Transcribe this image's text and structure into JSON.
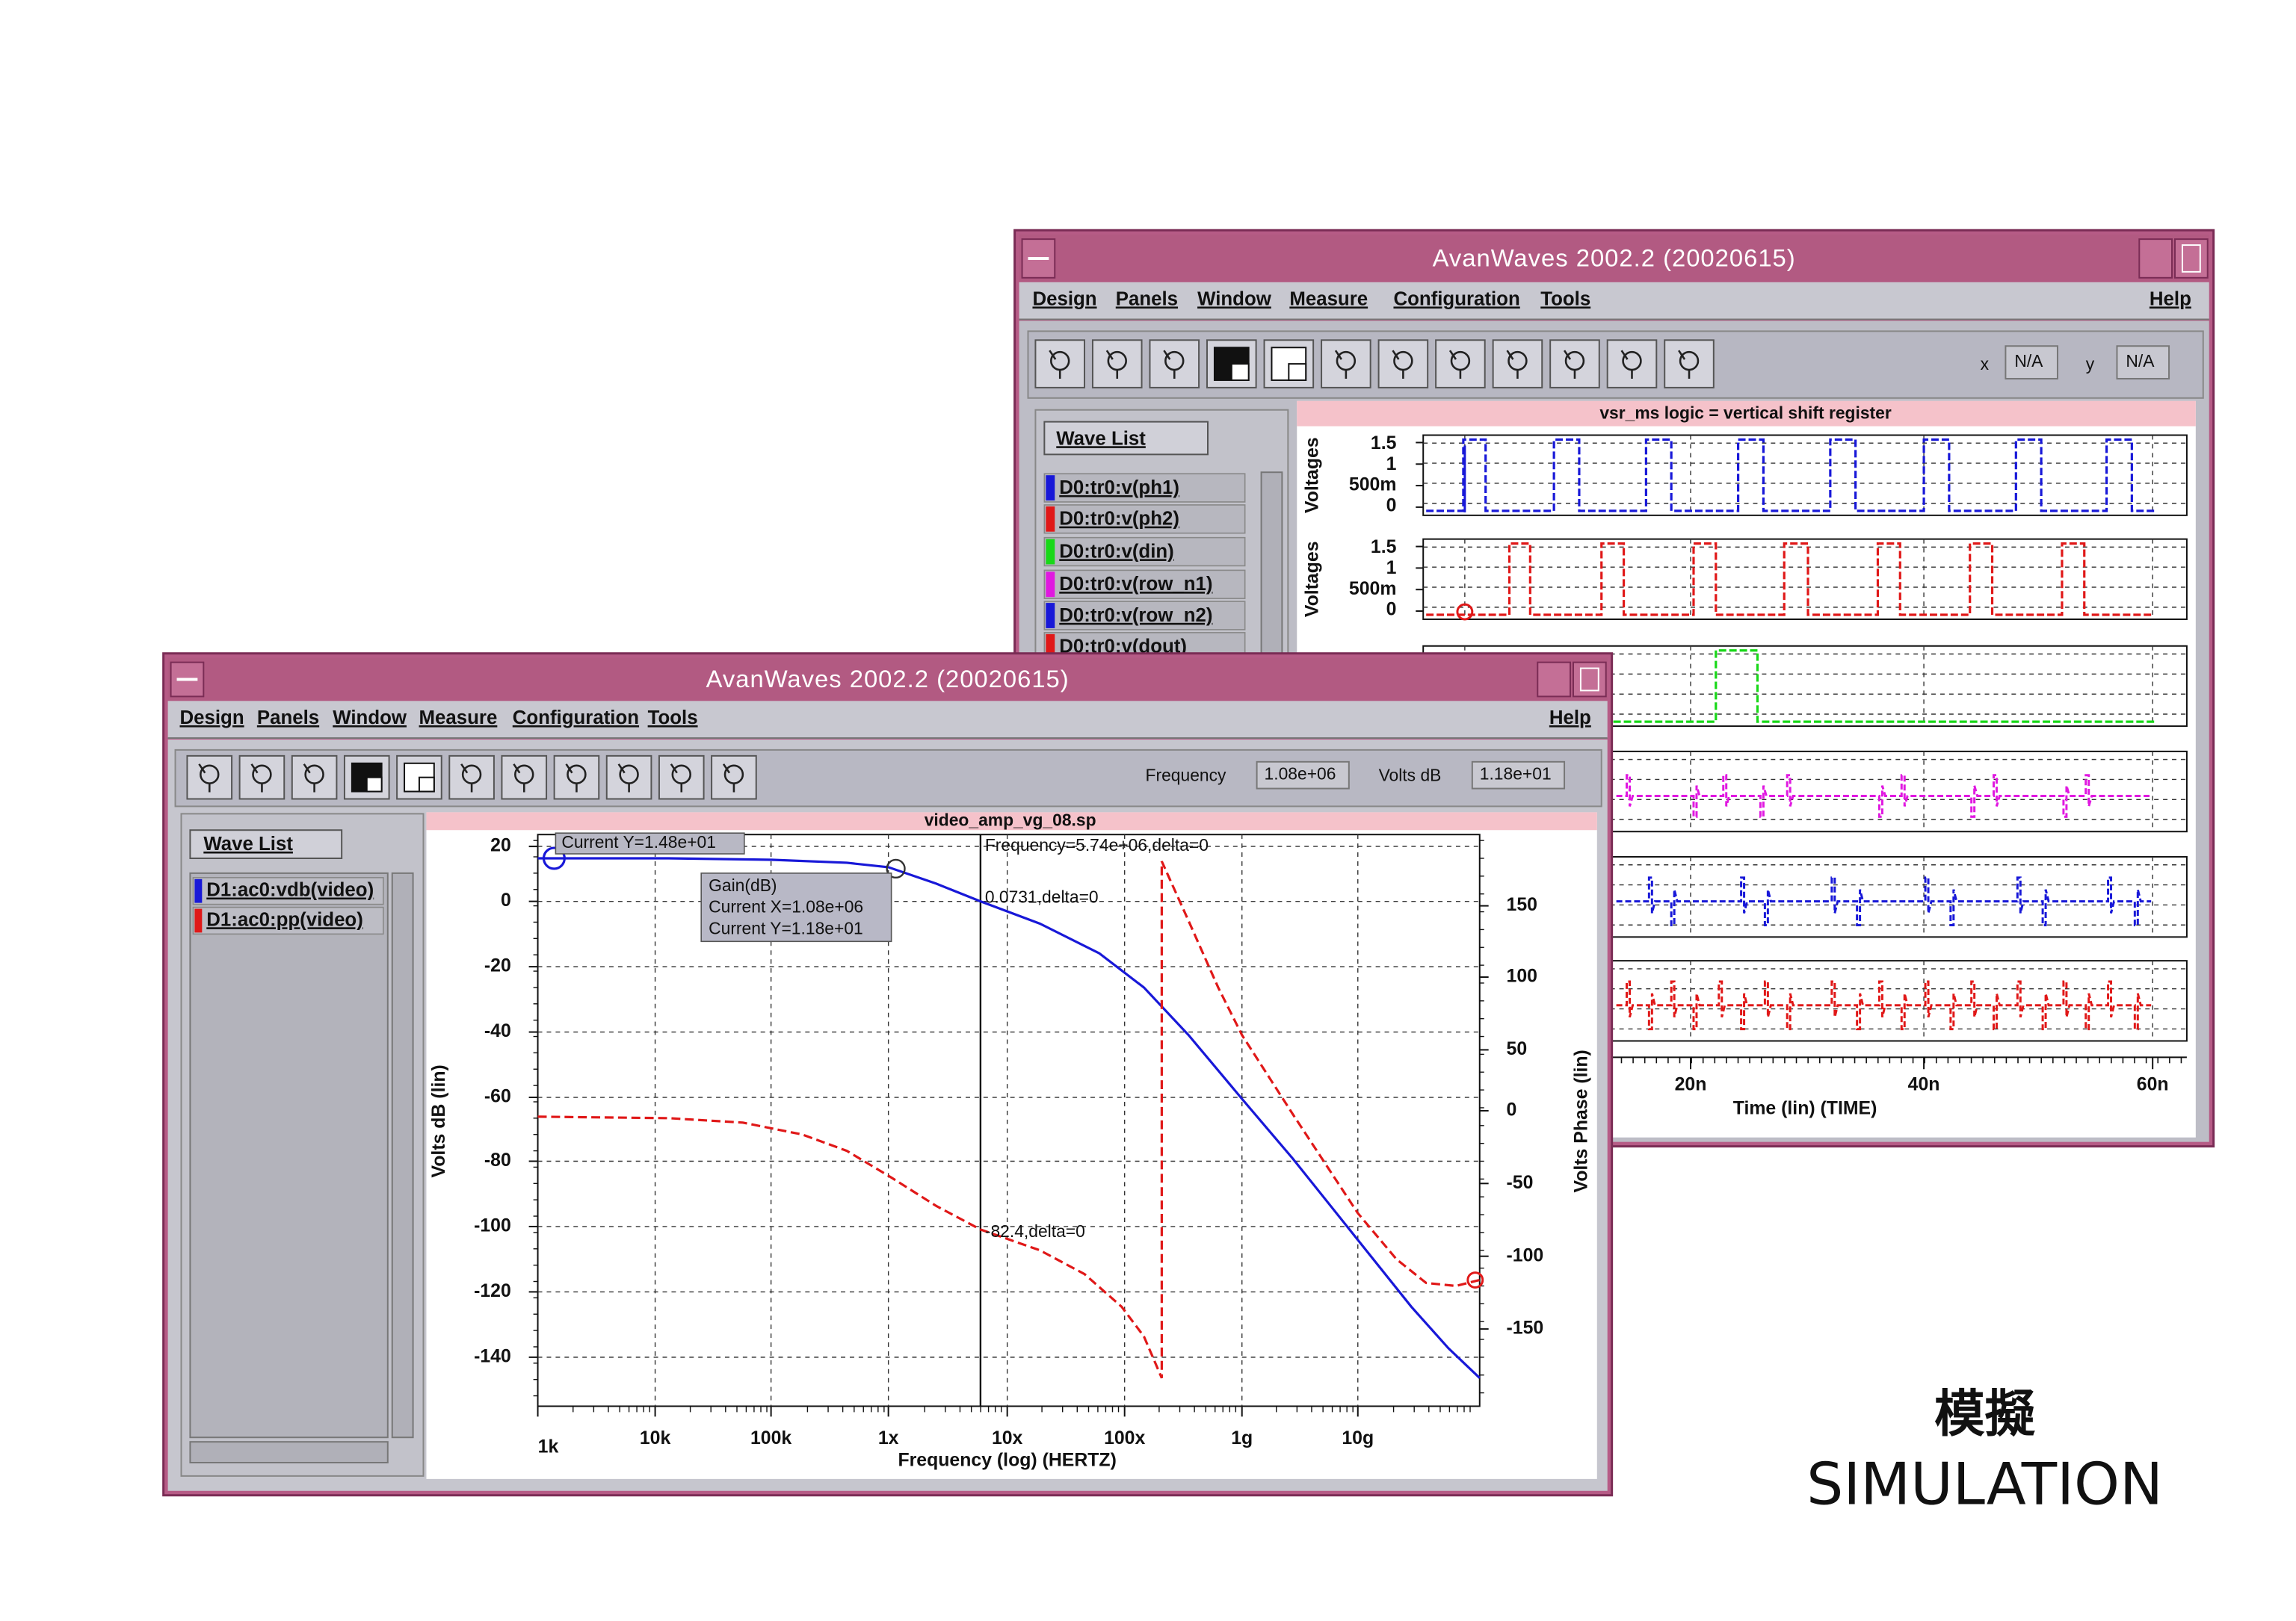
{
  "back_window": {
    "title": "AvanWaves 2002.2  (20020615)",
    "menu": [
      "Design",
      "Panels",
      "Window",
      "Measure",
      "Configuration",
      "Tools"
    ],
    "help": "Help",
    "fields": {
      "x_label": "x",
      "x_value": "N/A",
      "y_label": "y",
      "y_value": "N/A"
    },
    "wave_list": {
      "button": "Wave List",
      "items": [
        "D0:tr0:v(ph1)",
        "D0:tr0:v(ph2)",
        "D0:tr0:v(din)",
        "D0:tr0:v(row_n1)",
        "D0:tr0:v(row_n2)",
        "D0:tr0:v(dout)"
      ]
    },
    "plot": {
      "title": "vsr_ms logic = vertical shift register",
      "y_axis_label": "Voltages",
      "y_ticks": [
        "1.5",
        "1",
        "500m",
        "0"
      ],
      "x_ticks": [
        "20n",
        "40n",
        "60n"
      ],
      "x_axis_label": "Time (lin) (TIME)"
    }
  },
  "front_window": {
    "title": "AvanWaves 2002.2  (20020615)",
    "menu": [
      "Design",
      "Panels",
      "Window",
      "Measure",
      "Configuration",
      "Tools"
    ],
    "help": "Help",
    "fields": {
      "frequency_label": "Frequency",
      "frequency_value": "1.08e+06",
      "volts_label": "Volts dB",
      "volts_value": "1.18e+01"
    },
    "wave_list": {
      "button": "Wave List",
      "items": [
        "D1:ac0:vdb(video)",
        "D1:ac0:pp(video)"
      ]
    },
    "plot": {
      "title": "video_amp_vg_08.sp",
      "y_axis_label": "Volts dB (lin)",
      "y2_axis_label": "Volts Phase (lin)",
      "x_axis_label": "Frequency (log) (HERTZ)",
      "y_ticks": [
        "20",
        "0",
        "-20",
        "-40",
        "-60",
        "-80",
        "-100",
        "-120",
        "-140"
      ],
      "y2_ticks": [
        "150",
        "100",
        "50",
        "0",
        "-50",
        "-100",
        "-150"
      ],
      "x_ticks": [
        "1k",
        "10k",
        "100k",
        "1x",
        "10x",
        "100x",
        "1g",
        "10g"
      ],
      "annotations": [
        "Current Y=1.48e+01",
        "Frequency=5.74e+06,delta=0",
        "0.0731,delta=0",
        "-82.4,delta=0"
      ],
      "tooltip": [
        "Gain(dB)",
        "Current X=1.08e+06",
        "Current Y=1.18e+01"
      ]
    }
  },
  "caption": {
    "title": "模擬",
    "subtitle": "SIMULATION"
  }
}
